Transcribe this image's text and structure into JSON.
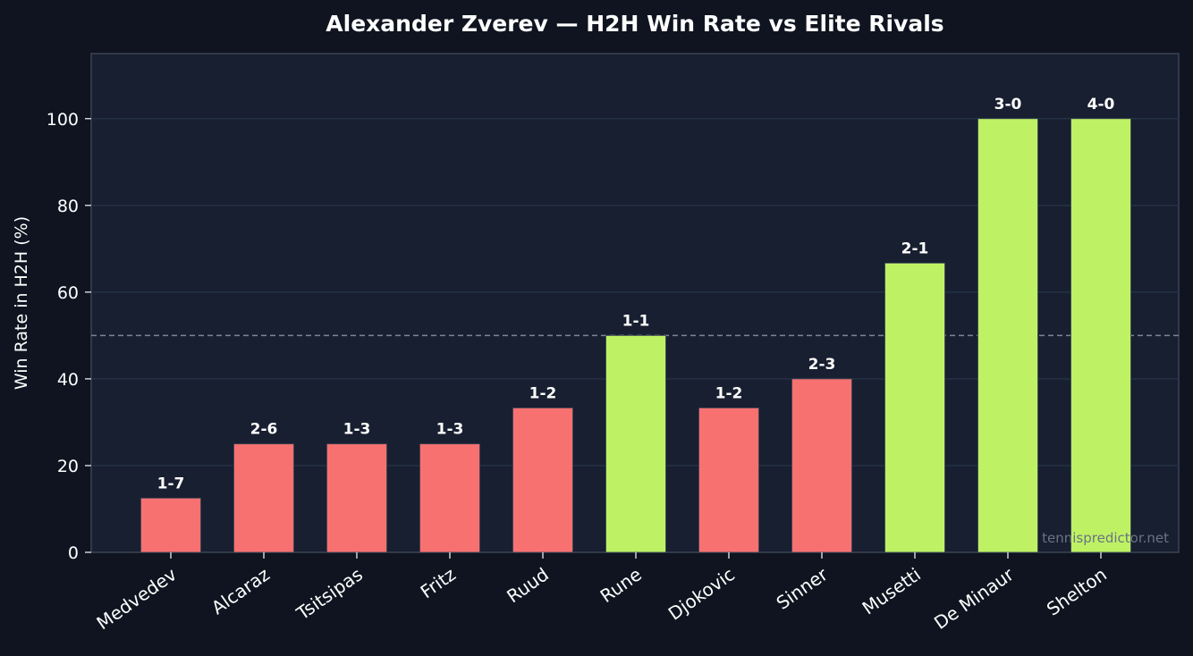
{
  "chart_data": {
    "type": "bar",
    "title": "Alexander Zverev — H2H Win Rate vs Elite Rivals",
    "xlabel": "",
    "ylabel": "Win Rate in H2H (%)",
    "ylim": [
      0,
      115
    ],
    "yticks": [
      0,
      20,
      40,
      60,
      80,
      100
    ],
    "reference_line": 50,
    "grid": true,
    "categories": [
      "Medvedev",
      "Alcaraz",
      "Tsitsipas",
      "Fritz",
      "Ruud",
      "Rune",
      "Djokovic",
      "Sinner",
      "Musetti",
      "De Minaur",
      "Shelton"
    ],
    "values": [
      12.5,
      25,
      25,
      25,
      33.3,
      50,
      33.3,
      40,
      66.7,
      100,
      100
    ],
    "records": [
      "1-7",
      "2-6",
      "1-3",
      "1-3",
      "1-2",
      "1-1",
      "1-2",
      "2-3",
      "2-1",
      "3-0",
      "4-0"
    ],
    "colors": {
      "losing": "#f87171",
      "winning": "#bef264",
      "background": "#0f1420",
      "plot_background": "#181f30",
      "grid": "#243044",
      "reference": "#7a8596"
    }
  },
  "watermark": "tennispredictor.net"
}
